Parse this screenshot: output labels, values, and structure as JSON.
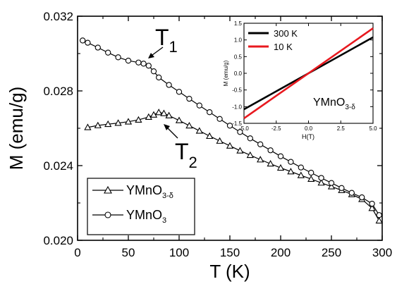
{
  "chart_data": [
    {
      "type": "scatter",
      "xlabel": "T (K)",
      "ylabel": "M (emu/g)",
      "xlim": [
        0,
        300
      ],
      "ylim": [
        0.02,
        0.032
      ],
      "x_ticks": [
        0,
        50,
        100,
        150,
        200,
        250,
        300
      ],
      "y_ticks": [
        0.02,
        0.024,
        0.028,
        0.032
      ],
      "x_tick_labels": [
        "0",
        "50",
        "100",
        "150",
        "200",
        "250",
        "300"
      ],
      "y_tick_labels": [
        "0.020",
        "0.024",
        "0.028",
        "0.032"
      ],
      "legend_position": "bottom-left",
      "series": [
        {
          "name": "YMnO3-δ",
          "marker": "triangle",
          "color": "#000000",
          "points": [
            [
              10,
              0.02605
            ],
            [
              20,
              0.02615
            ],
            [
              30,
              0.02622
            ],
            [
              40,
              0.02628
            ],
            [
              50,
              0.02635
            ],
            [
              60,
              0.02645
            ],
            [
              70,
              0.0266
            ],
            [
              75,
              0.02672
            ],
            [
              80,
              0.02685
            ],
            [
              85,
              0.0268
            ],
            [
              90,
              0.02668
            ],
            [
              100,
              0.02642
            ],
            [
              110,
              0.02614
            ],
            [
              120,
              0.02586
            ],
            [
              130,
              0.02558
            ],
            [
              140,
              0.02532
            ],
            [
              150,
              0.02506
            ],
            [
              160,
              0.0248
            ],
            [
              170,
              0.02456
            ],
            [
              180,
              0.02432
            ],
            [
              190,
              0.0241
            ],
            [
              200,
              0.02388
            ],
            [
              210,
              0.02368
            ],
            [
              220,
              0.02348
            ],
            [
              230,
              0.02328
            ],
            [
              240,
              0.02308
            ],
            [
              250,
              0.02288
            ],
            [
              260,
              0.02268
            ],
            [
              270,
              0.02246
            ],
            [
              280,
              0.0222
            ],
            [
              290,
              0.02172
            ],
            [
              297,
              0.02105
            ]
          ]
        },
        {
          "name": "YMnO3",
          "marker": "circle",
          "color": "#000000",
          "points": [
            [
              5,
              0.0307
            ],
            [
              10,
              0.03058
            ],
            [
              20,
              0.03032
            ],
            [
              30,
              0.03005
            ],
            [
              40,
              0.0298
            ],
            [
              50,
              0.02962
            ],
            [
              60,
              0.02952
            ],
            [
              65,
              0.02946
            ],
            [
              70,
              0.02935
            ],
            [
              75,
              0.02905
            ],
            [
              80,
              0.02872
            ],
            [
              90,
              0.02832
            ],
            [
              100,
              0.02795
            ],
            [
              110,
              0.02758
            ],
            [
              120,
              0.02722
            ],
            [
              130,
              0.02686
            ],
            [
              140,
              0.0265
            ],
            [
              150,
              0.02614
            ],
            [
              160,
              0.0258
            ],
            [
              170,
              0.02546
            ],
            [
              180,
              0.02514
            ],
            [
              190,
              0.02482
            ],
            [
              200,
              0.0245
            ],
            [
              210,
              0.0242
            ],
            [
              220,
              0.0239
            ],
            [
              230,
              0.02362
            ],
            [
              240,
              0.02334
            ],
            [
              250,
              0.02307
            ],
            [
              260,
              0.0228
            ],
            [
              270,
              0.02254
            ],
            [
              280,
              0.0223
            ],
            [
              290,
              0.02196
            ],
            [
              297,
              0.02135
            ]
          ]
        }
      ],
      "annotations": [
        {
          "main": "T",
          "sub": "1",
          "at": [
            75,
            0.0293
          ]
        },
        {
          "main": "T",
          "sub": "2",
          "at": [
            82,
            0.02675
          ]
        }
      ]
    },
    {
      "type": "line",
      "xlabel": "H(T)",
      "ylabel": "M (emu/g)",
      "xlim": [
        -5.0,
        5.0
      ],
      "ylim": [
        -1.5,
        1.5
      ],
      "x_ticks": [
        -5.0,
        -2.5,
        0.0,
        2.5,
        5.0
      ],
      "y_ticks": [
        -1.5,
        -1.0,
        -0.5,
        0.0,
        0.5,
        1.0,
        1.5
      ],
      "x_tick_labels": [
        "-5.0",
        "-2.5",
        "0.0",
        "2.5",
        "5.0"
      ],
      "y_tick_labels": [
        "-1.5",
        "-1.0",
        "-0.5",
        "0.0",
        "0.5",
        "1.0",
        "1.5"
      ],
      "legend_position": "top-left",
      "sample_label": {
        "main": "YMnO",
        "sub": "3-δ"
      },
      "series": [
        {
          "name": "300 K",
          "color": "#000000",
          "x": [
            -5.0,
            5.0
          ],
          "y": [
            -1.08,
            1.08
          ]
        },
        {
          "name": "10 K",
          "color": "#e8191f",
          "x": [
            -5.0,
            5.0
          ],
          "y": [
            -1.35,
            1.35
          ]
        }
      ]
    }
  ],
  "legend": {
    "items": [
      {
        "main": "YMnO",
        "sub": "3-δ",
        "marker": "triangle"
      },
      {
        "main": "YMnO",
        "sub": "3",
        "marker": "circle"
      }
    ]
  }
}
